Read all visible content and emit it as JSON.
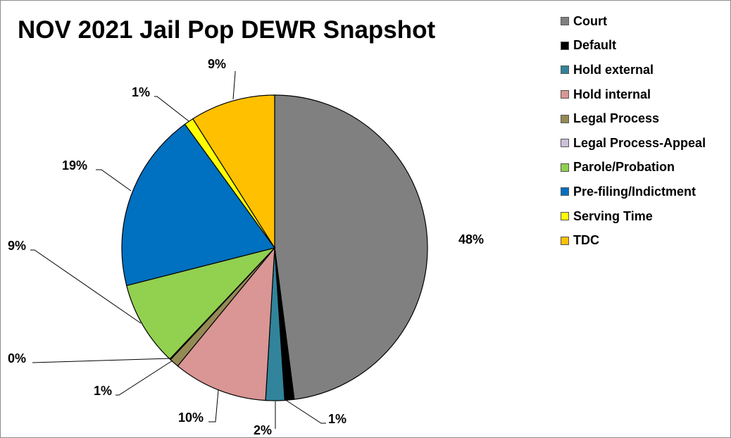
{
  "chart_data": {
    "type": "pie",
    "title": "NOV 2021 Jail Pop DEWR Snapshot",
    "legend_position": "right",
    "slices": [
      {
        "name": "Court",
        "value": 48,
        "label": "48%",
        "color": "#808080"
      },
      {
        "name": "Default",
        "value": 1,
        "label": "1%",
        "color": "#000000"
      },
      {
        "name": "Hold external",
        "value": 2,
        "label": "2%",
        "color": "#31849b"
      },
      {
        "name": "Hold internal",
        "value": 10,
        "label": "10%",
        "color": "#d99694"
      },
      {
        "name": "Legal Process",
        "value": 1,
        "label": "1%",
        "color": "#948a54"
      },
      {
        "name": "Legal Process-Appeal",
        "value": 0.1,
        "label": "0%",
        "color": "#ccc0da"
      },
      {
        "name": "Parole/Probation",
        "value": 9,
        "label": "9%",
        "color": "#92d050"
      },
      {
        "name": "Pre-filing/Indictment",
        "value": 19,
        "label": "19%",
        "color": "#0070c0"
      },
      {
        "name": "Serving Time",
        "value": 1,
        "label": "1%",
        "color": "#ffff00"
      },
      {
        "name": "TDC",
        "value": 9,
        "label": "9%",
        "color": "#ffc000"
      }
    ]
  }
}
